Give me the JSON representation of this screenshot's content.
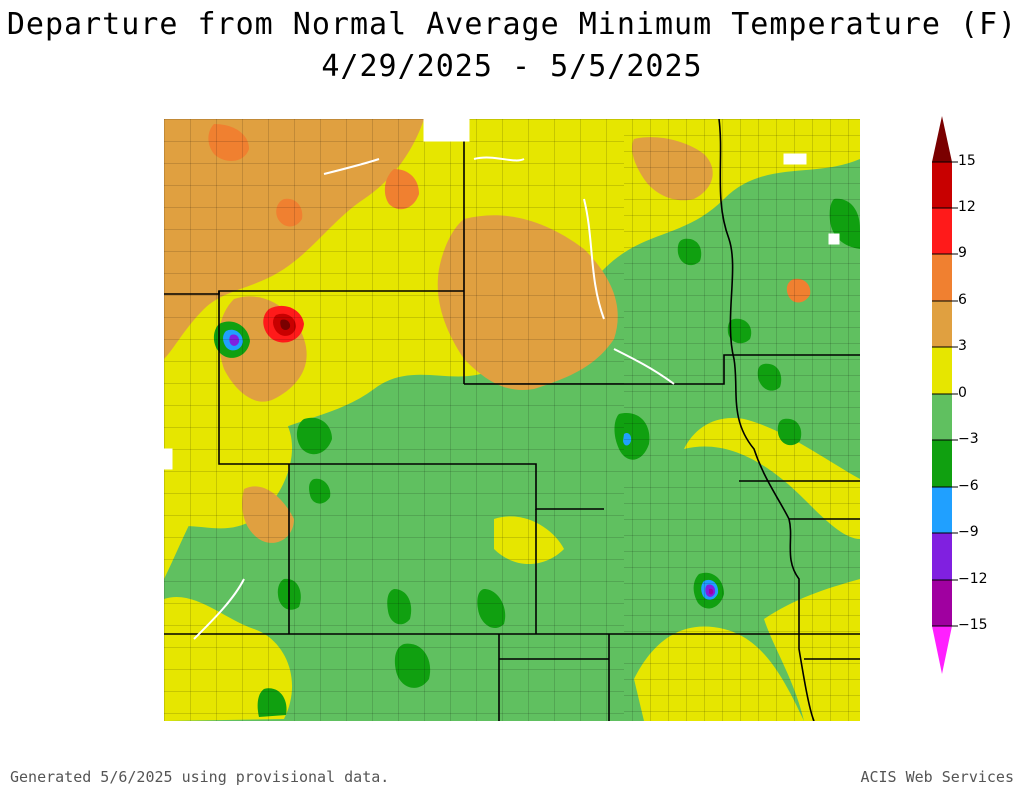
{
  "title": {
    "line1": "Departure from Normal Average Minimum Temperature (F)",
    "line2": "4/29/2025 - 5/5/2025"
  },
  "legend": {
    "labels": [
      "15",
      "12",
      "9",
      "6",
      "3",
      "0",
      "−3",
      "−6",
      "−9",
      "−12",
      "−15"
    ],
    "colors": [
      "#7a0000",
      "#c80000",
      "#ff1a1a",
      "#f08030",
      "#e0a040",
      "#e6e600",
      "#60c060",
      "#10a010",
      "#20a0ff",
      "#8020e0",
      "#a000a0",
      "#ff20ff"
    ]
  },
  "map_colors": {
    "yellow": "#e6e600",
    "orange": "#e0a040",
    "light_green": "#60c060",
    "green": "#10a010",
    "red": "#ff1a1a",
    "dark_red": "#c80000",
    "purple": "#8020e0",
    "magenta": "#a000a0",
    "blue": "#20a0ff"
  },
  "footer": {
    "left": "Generated 5/6/2025 using provisional data.",
    "right": "ACIS Web Services"
  }
}
